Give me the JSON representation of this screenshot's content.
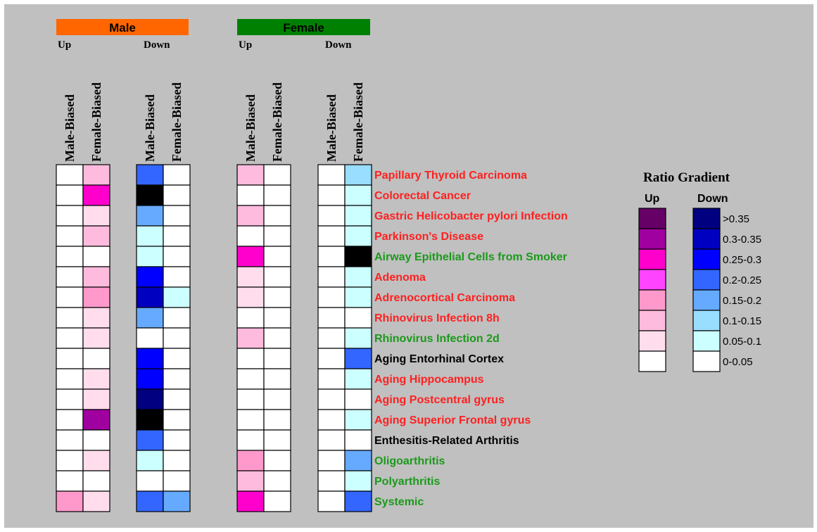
{
  "chart_data": {
    "type": "heatmap",
    "groups": [
      {
        "label": "Male",
        "color": "#ff6600",
        "directions": [
          "Up",
          "Down"
        ]
      },
      {
        "label": "Female",
        "color": "#008000",
        "directions": [
          "Up",
          "Down"
        ]
      }
    ],
    "column_labels": [
      "Male-Biased",
      "Female-Biased"
    ],
    "rows": [
      {
        "label": "Papillary Thyroid Carcinoma",
        "color": "#ff2020",
        "values": [
          [
            0,
            2
          ],
          [
            4,
            0
          ],
          [
            2,
            0
          ],
          [
            0,
            2
          ]
        ]
      },
      {
        "label": "Colorectal Cancer",
        "color": "#ff2020",
        "values": [
          [
            0,
            5
          ],
          [
            8,
            0
          ],
          [
            0,
            0
          ],
          [
            0,
            1
          ]
        ]
      },
      {
        "label": "Gastric Helicobacter pylori Infection",
        "color": "#ff2020",
        "values": [
          [
            0,
            1
          ],
          [
            3,
            0
          ],
          [
            2,
            0
          ],
          [
            0,
            1
          ]
        ]
      },
      {
        "label": "Parkinson's Disease",
        "color": "#ff2020",
        "values": [
          [
            0,
            2
          ],
          [
            1,
            0
          ],
          [
            0,
            0
          ],
          [
            0,
            1
          ]
        ]
      },
      {
        "label": "Airway Epithelial Cells from Smoker",
        "color": "#1a9a1a",
        "values": [
          [
            0,
            0
          ],
          [
            1,
            0
          ],
          [
            5,
            0
          ],
          [
            0,
            8
          ]
        ]
      },
      {
        "label": "Adenoma",
        "color": "#ff2020",
        "values": [
          [
            0,
            2
          ],
          [
            5,
            0
          ],
          [
            1,
            0
          ],
          [
            0,
            1
          ]
        ]
      },
      {
        "label": "Adrenocortical Carcinoma",
        "color": "#ff2020",
        "values": [
          [
            0,
            3
          ],
          [
            6,
            1
          ],
          [
            1,
            0
          ],
          [
            0,
            1
          ]
        ]
      },
      {
        "label": "Rhinovirus Infection 8h",
        "color": "#ff2020",
        "values": [
          [
            0,
            1
          ],
          [
            3,
            0
          ],
          [
            0,
            0
          ],
          [
            0,
            0
          ]
        ]
      },
      {
        "label": "Rhinovirus Infection 2d",
        "color": "#1a9a1a",
        "values": [
          [
            0,
            1
          ],
          [
            0,
            0
          ],
          [
            2,
            0
          ],
          [
            0,
            1
          ]
        ]
      },
      {
        "label": "Aging Entorhinal Cortex",
        "color": "#000000",
        "values": [
          [
            0,
            0
          ],
          [
            5,
            0
          ],
          [
            0,
            0
          ],
          [
            0,
            4
          ]
        ]
      },
      {
        "label": "Aging Hippocampus",
        "color": "#ff2020",
        "values": [
          [
            0,
            1
          ],
          [
            5,
            0
          ],
          [
            0,
            0
          ],
          [
            0,
            1
          ]
        ]
      },
      {
        "label": "Aging Postcentral gyrus",
        "color": "#ff2020",
        "values": [
          [
            0,
            1
          ],
          [
            7,
            0
          ],
          [
            0,
            0
          ],
          [
            0,
            0
          ]
        ]
      },
      {
        "label": "Aging Superior Frontal gyrus",
        "color": "#ff2020",
        "values": [
          [
            0,
            6
          ],
          [
            8,
            0
          ],
          [
            0,
            0
          ],
          [
            0,
            1
          ]
        ]
      },
      {
        "label": "Enthesitis-Related Arthritis",
        "color": "#000000",
        "values": [
          [
            0,
            0
          ],
          [
            4,
            0
          ],
          [
            0,
            0
          ],
          [
            0,
            0
          ]
        ]
      },
      {
        "label": "Oligoarthritis",
        "color": "#1a9a1a",
        "values": [
          [
            0,
            1
          ],
          [
            1,
            0
          ],
          [
            3,
            0
          ],
          [
            0,
            3
          ]
        ]
      },
      {
        "label": "Polyarthritis",
        "color": "#1a9a1a",
        "values": [
          [
            0,
            0
          ],
          [
            0,
            0
          ],
          [
            2,
            0
          ],
          [
            0,
            1
          ]
        ]
      },
      {
        "label": "Systemic",
        "color": "#1a9a1a",
        "values": [
          [
            3,
            1
          ],
          [
            4,
            3
          ],
          [
            5,
            0
          ],
          [
            0,
            4
          ]
        ]
      }
    ],
    "legend": {
      "title": "Ratio Gradient",
      "up_label": "Up",
      "down_label": "Down",
      "ranges": [
        ">0.35",
        "0.3-0.35",
        "0.25-0.3",
        "0.2-0.25",
        "0.15-0.2",
        "0.1-0.15",
        "0.05-0.1",
        "0-0.05"
      ],
      "up_colors": [
        "#660066",
        "#a000a0",
        "#ff00cc",
        "#ff44ff",
        "#ff99cc",
        "#ffbbdd",
        "#ffdded",
        "#ffffff"
      ],
      "down_colors": [
        "#000080",
        "#0000c0",
        "#0000ff",
        "#3366ff",
        "#66aaff",
        "#99ddff",
        "#ccffff",
        "#ffffff"
      ]
    }
  }
}
